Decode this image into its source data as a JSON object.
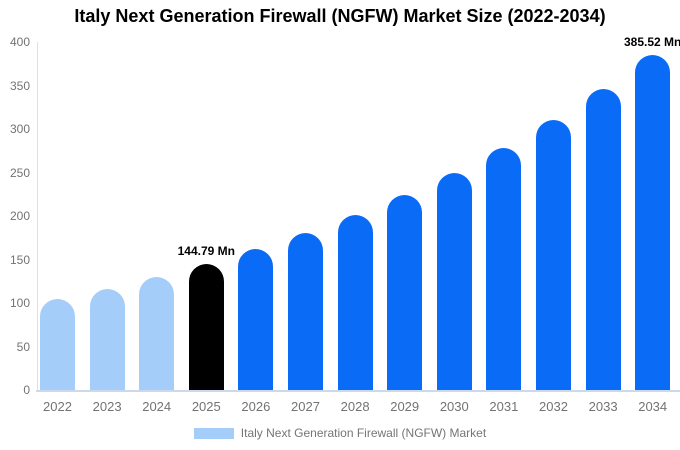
{
  "chart_data": {
    "type": "bar",
    "title": "Italy Next Generation Firewall (NGFW) Market Size (2022-2034)",
    "unit": "Mn",
    "ylim": [
      0,
      400
    ],
    "yticks": [
      0,
      50,
      100,
      150,
      200,
      250,
      300,
      350,
      400
    ],
    "categories": [
      "2022",
      "2023",
      "2024",
      "2025",
      "2026",
      "2027",
      "2028",
      "2029",
      "2030",
      "2031",
      "2032",
      "2033",
      "2034"
    ],
    "values": [
      104.4,
      116.4,
      129.8,
      144.79,
      161.5,
      180.1,
      200.8,
      223.9,
      249.7,
      278.5,
      310.5,
      346.3,
      385.52
    ],
    "bar_roles": [
      "historic",
      "historic",
      "historic",
      "highlight",
      "forecast",
      "forecast",
      "forecast",
      "forecast",
      "forecast",
      "forecast",
      "forecast",
      "forecast",
      "forecast"
    ],
    "colors": {
      "historic": "#a5cdfa",
      "highlight": "#000000",
      "forecast": "#0a6cf6",
      "axis_text": "#737373",
      "axis_line": "#e0e0e0",
      "baseline": "#ccd8ec"
    },
    "annotations": [
      {
        "index": 3,
        "text": "144.79 Mn"
      },
      {
        "index": 12,
        "text": "385.52 Mn"
      }
    ],
    "legend": [
      {
        "label": "Italy Next Generation Firewall (NGFW) Market",
        "swatch": "#a5cdfa"
      }
    ],
    "grid": false,
    "legend_position": "bottom-center"
  }
}
